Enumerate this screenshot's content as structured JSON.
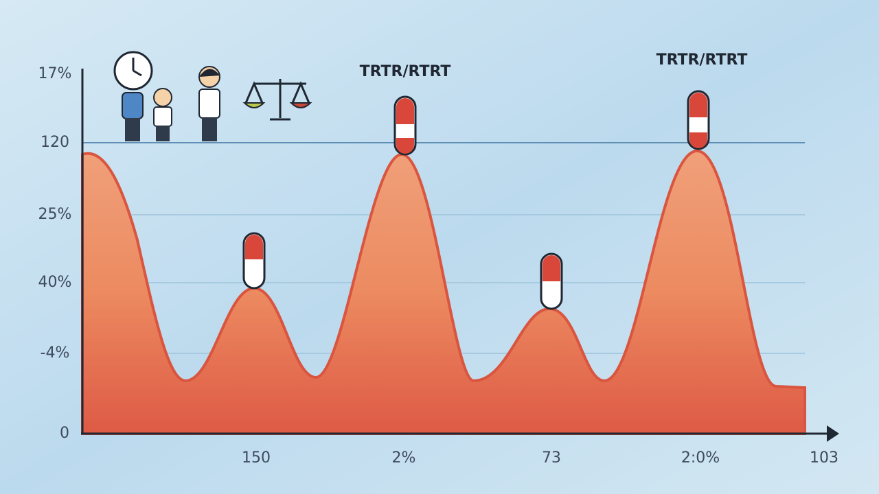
{
  "y_axis_labels": [
    "17%",
    "120",
    "25%",
    "40%",
    "-4%",
    "0"
  ],
  "x_axis_labels": [
    "150",
    "2%",
    "73",
    "2:0%",
    "103"
  ],
  "annotations": [
    "TRTR/RTRT",
    "TRTR/RTRT"
  ]
}
